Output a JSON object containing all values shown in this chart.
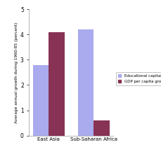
{
  "regions": [
    "East Asia",
    "Sub-Saharan Africa"
  ],
  "educational_capital_growth": [
    2.8,
    4.2
  ],
  "gdp_per_capita_growth": [
    4.1,
    0.6
  ],
  "bar_color_edu": "#aaaaee",
  "bar_color_gdp": "#883355",
  "ylabel": "Average annual growth during 1960-85 (percent)",
  "ylim": [
    0,
    5
  ],
  "yticks": [
    0,
    1,
    2,
    3,
    4,
    5
  ],
  "legend_edu": "Educational capital growth",
  "legend_gdp": "GDP per capita growth",
  "bar_width": 0.35,
  "figure_bg": "#ffffff",
  "axes_bg": "#ffffff"
}
